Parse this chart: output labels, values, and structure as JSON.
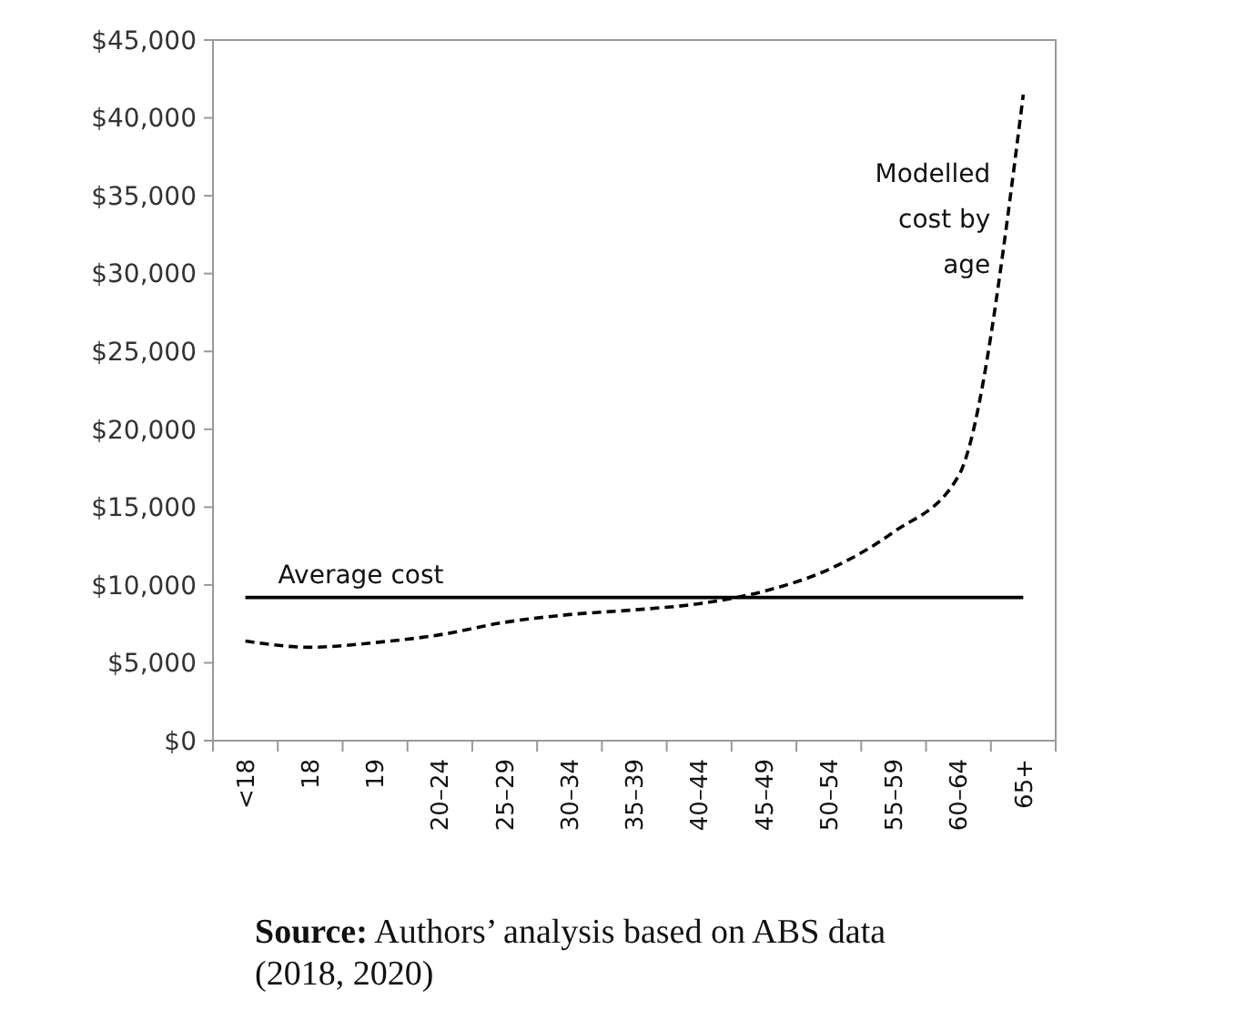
{
  "chart_data": {
    "type": "line",
    "categories": [
      "<18",
      "18",
      "19",
      "20–24",
      "25–29",
      "30–34",
      "35–39",
      "40–44",
      "45–49",
      "50–54",
      "55–59",
      "60–64",
      "65+"
    ],
    "series": [
      {
        "name": "Modelled cost by age",
        "color": "#000000",
        "line_style": "dashed",
        "values": [
          6400,
          6000,
          6300,
          6800,
          7600,
          8100,
          8400,
          8800,
          9600,
          11000,
          13400,
          17000,
          41500
        ]
      }
    ],
    "ylim": [
      0,
      45000
    ],
    "yticks": [
      {
        "value": 0,
        "label": "$0"
      },
      {
        "value": 5000,
        "label": "$5,000"
      },
      {
        "value": 10000,
        "label": "$10,000"
      },
      {
        "value": 15000,
        "label": "$15,000"
      },
      {
        "value": 20000,
        "label": "$20,000"
      },
      {
        "value": 25000,
        "label": "$25,000"
      },
      {
        "value": 30000,
        "label": "$30,000"
      },
      {
        "value": 35000,
        "label": "$35,000"
      },
      {
        "value": 40000,
        "label": "$40,000"
      },
      {
        "value": 45000,
        "label": "$45,000"
      }
    ],
    "ref_lines": [
      {
        "axis": "y",
        "value": 9200,
        "label": "Average cost",
        "color": "#000000"
      }
    ],
    "annotations": [
      "Source: Authors’ analysis based on ABS data (2018, 2020)"
    ],
    "grid": false
  }
}
